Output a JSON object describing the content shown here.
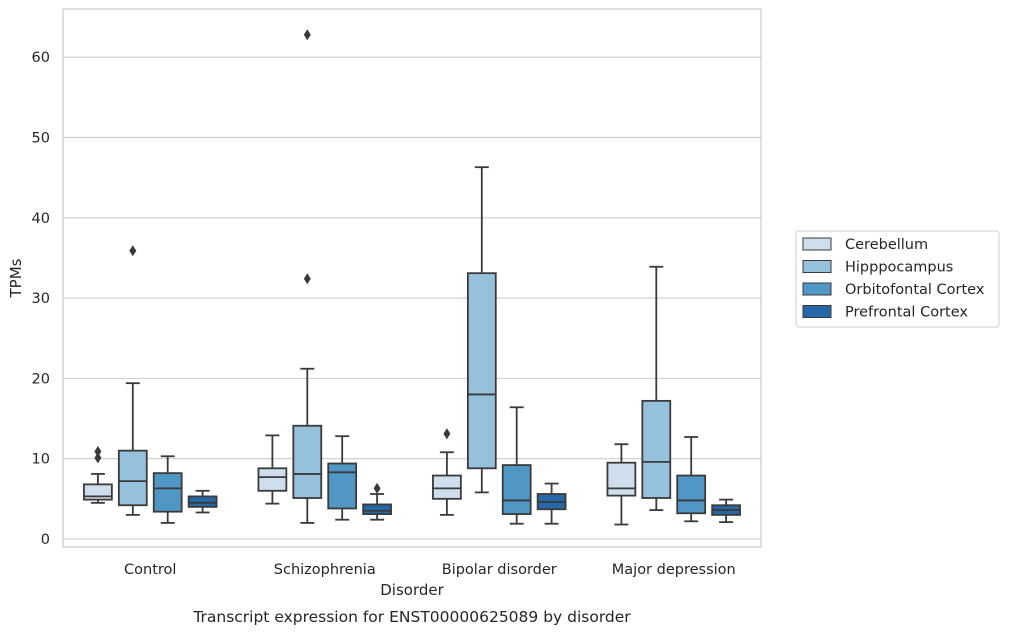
{
  "chart_data": {
    "type": "boxplot",
    "caption": "Transcript expression for ENST00000625089 by disorder",
    "xlabel": "Disorder",
    "ylabel": "TPMs",
    "ylim": [
      -1.0,
      66.0
    ],
    "yticks": [
      0,
      10,
      20,
      30,
      40,
      50,
      60
    ],
    "grid": "horizontal",
    "legend_position": "right",
    "categories": [
      "Control",
      "Schizophrenia",
      "Bipolar disorder",
      "Major depression"
    ],
    "series": [
      {
        "name": "Cerebellum",
        "color": "#cfdeec",
        "boxes": [
          {
            "whisker_low": 4.5,
            "q1": 4.9,
            "median": 5.3,
            "q3": 6.8,
            "whisker_high": 8.1,
            "outliers": [
              10.1,
              10.9
            ]
          },
          {
            "whisker_low": 4.4,
            "q1": 6.0,
            "median": 7.7,
            "q3": 8.8,
            "whisker_high": 12.9,
            "outliers": []
          },
          {
            "whisker_low": 3.0,
            "q1": 5.0,
            "median": 6.3,
            "q3": 7.9,
            "whisker_high": 10.8,
            "outliers": [
              13.1
            ]
          },
          {
            "whisker_low": 1.8,
            "q1": 5.4,
            "median": 6.3,
            "q3": 9.5,
            "whisker_high": 11.8,
            "outliers": []
          }
        ]
      },
      {
        "name": "Hipppocampus",
        "color": "#96c1dc",
        "boxes": [
          {
            "whisker_low": 3.0,
            "q1": 4.2,
            "median": 7.2,
            "q3": 11.0,
            "whisker_high": 19.4,
            "outliers": [
              35.9
            ]
          },
          {
            "whisker_low": 2.0,
            "q1": 5.1,
            "median": 8.1,
            "q3": 14.1,
            "whisker_high": 21.2,
            "outliers": [
              32.4,
              62.8
            ]
          },
          {
            "whisker_low": 5.8,
            "q1": 8.8,
            "median": 18.0,
            "q3": 33.1,
            "whisker_high": 46.3,
            "outliers": []
          },
          {
            "whisker_low": 3.6,
            "q1": 5.1,
            "median": 9.6,
            "q3": 17.2,
            "whisker_high": 33.9,
            "outliers": []
          }
        ]
      },
      {
        "name": "Orbitofontal Cortex",
        "color": "#5097c5",
        "boxes": [
          {
            "whisker_low": 2.0,
            "q1": 3.4,
            "median": 6.3,
            "q3": 8.2,
            "whisker_high": 10.3,
            "outliers": []
          },
          {
            "whisker_low": 2.4,
            "q1": 3.8,
            "median": 8.3,
            "q3": 9.4,
            "whisker_high": 12.8,
            "outliers": []
          },
          {
            "whisker_low": 1.9,
            "q1": 3.1,
            "median": 4.8,
            "q3": 9.2,
            "whisker_high": 16.4,
            "outliers": []
          },
          {
            "whisker_low": 2.2,
            "q1": 3.2,
            "median": 4.8,
            "q3": 7.9,
            "whisker_high": 12.7,
            "outliers": []
          }
        ]
      },
      {
        "name": "Prefrontal Cortex",
        "color": "#2767a7",
        "boxes": [
          {
            "whisker_low": 3.3,
            "q1": 4.0,
            "median": 4.5,
            "q3": 5.3,
            "whisker_high": 6.0,
            "outliers": []
          },
          {
            "whisker_low": 2.4,
            "q1": 3.1,
            "median": 3.5,
            "q3": 4.3,
            "whisker_high": 5.6,
            "outliers": [
              6.3
            ]
          },
          {
            "whisker_low": 1.9,
            "q1": 3.7,
            "median": 4.6,
            "q3": 5.6,
            "whisker_high": 6.9,
            "outliers": []
          },
          {
            "whisker_low": 2.1,
            "q1": 3.0,
            "median": 3.6,
            "q3": 4.2,
            "whisker_high": 4.9,
            "outliers": []
          }
        ]
      }
    ]
  }
}
